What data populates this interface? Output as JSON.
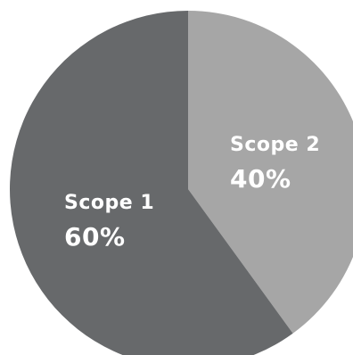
{
  "chart_data": {
    "type": "pie",
    "title": "",
    "slices": [
      {
        "label": "Scope 1",
        "value": 60,
        "value_label": "60%",
        "color": "#67696b"
      },
      {
        "label": "Scope 2",
        "value": 40,
        "value_label": "40%",
        "color": "#a6a6a6"
      }
    ],
    "start_angle": "12 o'clock",
    "direction": "counter-clockwise for Scope 1 (Scope 2 clockwise from top)",
    "legend": "none (labels inside slices)"
  }
}
